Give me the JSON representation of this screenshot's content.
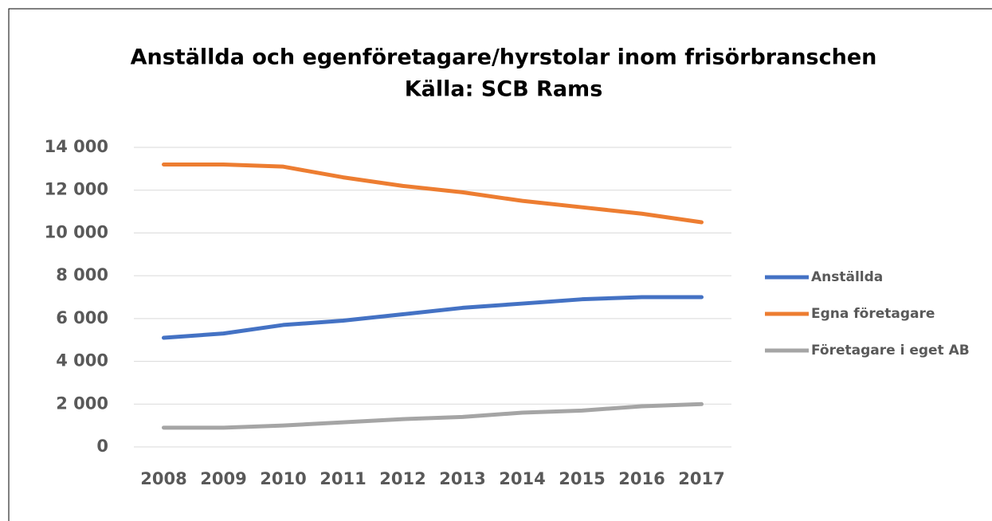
{
  "chart_data": {
    "type": "line",
    "title": "Anställda och egenföretagare/hyrstolar inom frisörbranschen",
    "subtitle": "Källa: SCB Rams",
    "categories": [
      "2008",
      "2009",
      "2010",
      "2011",
      "2012",
      "2013",
      "2014",
      "2015",
      "2016",
      "2017"
    ],
    "series": [
      {
        "name": "Anställda",
        "color": "#4472c4",
        "values": [
          5100,
          5300,
          5700,
          5900,
          6200,
          6500,
          6700,
          6900,
          7000,
          7000
        ]
      },
      {
        "name": "Egna företagare",
        "color": "#ed7d31",
        "values": [
          13200,
          13200,
          13100,
          12600,
          12200,
          11900,
          11500,
          11200,
          10900,
          10500
        ]
      },
      {
        "name": "Företagare i eget AB",
        "color": "#a5a5a5",
        "values": [
          900,
          900,
          1000,
          1150,
          1300,
          1400,
          1600,
          1700,
          1900,
          2000
        ]
      }
    ],
    "ylim": [
      0,
      14000
    ],
    "yticks": [
      0,
      {
        "value": 2000,
        "label": "2 000"
      },
      {
        "value": 4000,
        "label": "4 000"
      },
      {
        "value": 6000,
        "label": "6 000"
      },
      {
        "value": 8000,
        "label": "8 000"
      },
      {
        "value": 10000,
        "label": "10 000"
      },
      {
        "value": 12000,
        "label": "12 000"
      },
      {
        "value": 14000,
        "label": "14 000"
      }
    ],
    "grid": true,
    "legend": "right"
  }
}
